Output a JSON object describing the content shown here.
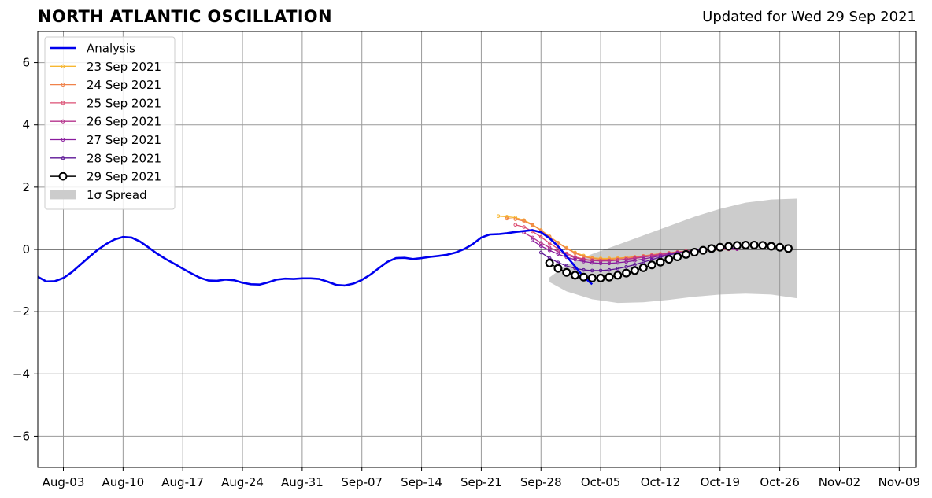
{
  "header": {
    "title": "NORTH ATLANTIC OSCILLATION",
    "subtitle": "Updated for Wed 29 Sep 2021"
  },
  "chart_data": {
    "type": "line",
    "title": "NORTH ATLANTIC OSCILLATION",
    "xlabel": "",
    "ylabel": "",
    "x_axis": {
      "type": "date",
      "range": [
        "2021-07-31",
        "2021-11-11"
      ],
      "tick_labels": [
        "Aug-03",
        "Aug-10",
        "Aug-17",
        "Aug-24",
        "Aug-31",
        "Sep-07",
        "Sep-14",
        "Sep-21",
        "Sep-28",
        "Oct-05",
        "Oct-12",
        "Oct-19",
        "Oct-26",
        "Nov-02",
        "Nov-09"
      ],
      "tick_dates": [
        "2021-08-03",
        "2021-08-10",
        "2021-08-17",
        "2021-08-24",
        "2021-08-31",
        "2021-09-07",
        "2021-09-14",
        "2021-09-21",
        "2021-09-28",
        "2021-10-05",
        "2021-10-12",
        "2021-10-19",
        "2021-10-26",
        "2021-11-02",
        "2021-11-09"
      ]
    },
    "y_axis": {
      "range": [
        -7,
        7
      ],
      "ticks": [
        -6,
        -4,
        -2,
        0,
        2,
        4,
        6
      ],
      "tick_labels": [
        "−6",
        "−4",
        "−2",
        "0",
        "2",
        "4",
        "6"
      ]
    },
    "grid": true,
    "legend_position": "top-left",
    "zero_line": 0,
    "analysis": {
      "name": "Analysis",
      "color": "#0000ee",
      "start_date": "2021-07-31",
      "values": [
        -0.88,
        -1.03,
        -1.02,
        -0.92,
        -0.73,
        -0.49,
        -0.25,
        -0.02,
        0.17,
        0.32,
        0.4,
        0.38,
        0.25,
        0.06,
        -0.14,
        -0.31,
        -0.46,
        -0.62,
        -0.77,
        -0.91,
        -1.0,
        -1.01,
        -0.97,
        -0.99,
        -1.07,
        -1.12,
        -1.13,
        -1.06,
        -0.97,
        -0.94,
        -0.95,
        -0.93,
        -0.93,
        -0.95,
        -1.04,
        -1.14,
        -1.16,
        -1.1,
        -0.98,
        -0.81,
        -0.6,
        -0.4,
        -0.28,
        -0.27,
        -0.31,
        -0.28,
        -0.24,
        -0.21,
        -0.17,
        -0.1,
        0.01,
        0.17,
        0.38,
        0.48,
        0.49,
        0.52,
        0.56,
        0.59,
        0.62,
        0.55,
        0.36,
        0.1,
        -0.22,
        -0.55,
        -0.88,
        -1.12
      ]
    },
    "forecasts": [
      {
        "name": "23 Sep 2021",
        "color": "#f7b731",
        "start_date": "2021-09-23",
        "values": [
          1.07,
          1.05,
          1.02,
          0.94,
          0.8,
          0.62,
          0.42,
          0.22,
          0.05,
          -0.1,
          -0.2,
          -0.27,
          -0.29,
          -0.29,
          -0.28,
          -0.26,
          -0.24,
          -0.22,
          -0.19,
          -0.15,
          -0.12,
          -0.1,
          -0.07,
          -0.05,
          -0.03,
          -0.02,
          -0.01,
          0.0,
          0.01
        ]
      },
      {
        "name": "24 Sep 2021",
        "color": "#f0824a",
        "start_date": "2021-09-24",
        "values": [
          0.99,
          0.97,
          0.91,
          0.78,
          0.61,
          0.41,
          0.21,
          0.03,
          -0.12,
          -0.23,
          -0.29,
          -0.32,
          -0.32,
          -0.3,
          -0.27,
          -0.24,
          -0.21,
          -0.17,
          -0.14,
          -0.11,
          -0.08,
          -0.05,
          -0.03,
          -0.02,
          -0.01,
          0.0,
          0.01,
          0.02
        ]
      },
      {
        "name": "25 Sep 2021",
        "color": "#dc4f73",
        "start_date": "2021-09-25",
        "values": [
          0.79,
          0.72,
          0.58,
          0.4,
          0.2,
          0.02,
          -0.13,
          -0.24,
          -0.31,
          -0.35,
          -0.37,
          -0.36,
          -0.34,
          -0.31,
          -0.27,
          -0.23,
          -0.19,
          -0.15,
          -0.12,
          -0.09,
          -0.06,
          -0.04,
          -0.02,
          -0.01,
          0.0,
          0.01,
          0.01
        ]
      },
      {
        "name": "26 Sep 2021",
        "color": "#b5338c",
        "start_date": "2021-09-26",
        "values": [
          0.54,
          0.38,
          0.21,
          0.06,
          -0.07,
          -0.18,
          -0.27,
          -0.33,
          -0.36,
          -0.37,
          -0.37,
          -0.35,
          -0.32,
          -0.29,
          -0.25,
          -0.21,
          -0.17,
          -0.13,
          -0.1,
          -0.07,
          -0.05,
          -0.03,
          -0.01,
          0.0,
          0.01,
          0.01
        ]
      },
      {
        "name": "27 Sep 2021",
        "color": "#8a1c9e",
        "start_date": "2021-09-27",
        "values": [
          0.29,
          0.11,
          -0.03,
          -0.15,
          -0.25,
          -0.33,
          -0.39,
          -0.43,
          -0.45,
          -0.45,
          -0.43,
          -0.4,
          -0.36,
          -0.31,
          -0.26,
          -0.21,
          -0.16,
          -0.12,
          -0.08,
          -0.05,
          -0.03,
          -0.01,
          0.0,
          0.01,
          0.01
        ]
      },
      {
        "name": "28 Sep 2021",
        "color": "#5c1596",
        "start_date": "2021-09-28",
        "values": [
          -0.1,
          -0.28,
          -0.42,
          -0.53,
          -0.61,
          -0.66,
          -0.68,
          -0.68,
          -0.66,
          -0.62,
          -0.56,
          -0.49,
          -0.41,
          -0.33,
          -0.25,
          -0.18,
          -0.12,
          -0.07,
          -0.03,
          0.0,
          0.02,
          0.03,
          0.04,
          0.04
        ]
      }
    ],
    "current_forecast": {
      "name": "29 Sep 2021",
      "color": "#000000",
      "start_date": "2021-09-29",
      "values": [
        -0.44,
        -0.61,
        -0.74,
        -0.83,
        -0.89,
        -0.92,
        -0.92,
        -0.89,
        -0.83,
        -0.76,
        -0.68,
        -0.59,
        -0.5,
        -0.41,
        -0.32,
        -0.24,
        -0.16,
        -0.09,
        -0.03,
        0.03,
        0.07,
        0.1,
        0.13,
        0.14,
        0.14,
        0.13,
        0.1,
        0.07,
        0.03
      ]
    },
    "spread": {
      "name": "1σ Spread",
      "color": "#cccccc",
      "dates": [
        "2021-09-29",
        "2021-10-01",
        "2021-10-04",
        "2021-10-07",
        "2021-10-10",
        "2021-10-13",
        "2021-10-16",
        "2021-10-19",
        "2021-10-22",
        "2021-10-25",
        "2021-10-28"
      ],
      "upper": [
        -0.9,
        -0.5,
        -0.15,
        0.15,
        0.45,
        0.75,
        1.05,
        1.3,
        1.5,
        1.6,
        1.63
      ],
      "lower": [
        -1.05,
        -1.35,
        -1.6,
        -1.72,
        -1.7,
        -1.62,
        -1.52,
        -1.45,
        -1.42,
        -1.45,
        -1.57
      ]
    },
    "legend": [
      "Analysis",
      "23 Sep 2021",
      "24 Sep 2021",
      "25 Sep 2021",
      "26 Sep 2021",
      "27 Sep 2021",
      "28 Sep 2021",
      "29 Sep 2021",
      "1σ Spread"
    ]
  }
}
